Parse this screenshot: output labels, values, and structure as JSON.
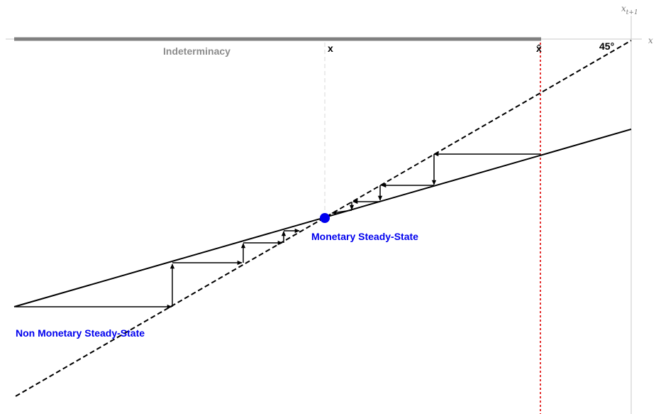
{
  "axes": {
    "y_label_base": "x",
    "y_label_sub": "t+1",
    "x_label": "x"
  },
  "labels": {
    "indeterminacy": "Indeterminacy",
    "x_marker": "x",
    "x_hat_marker": "x̂",
    "angle": "45°",
    "monetary_ss": "Monetary Steady-State",
    "non_monetary_ss": "Non Monetary Steady-State"
  },
  "colors": {
    "band": "#808080",
    "indeterminacy_text": "#8c8c8c",
    "steady_state": "#0000ee",
    "threshold_line": "#dd0000",
    "curve": "#000000"
  },
  "icons": {
    "steady_state_point": "filled-circle",
    "arrow_heads": "triangle"
  }
}
